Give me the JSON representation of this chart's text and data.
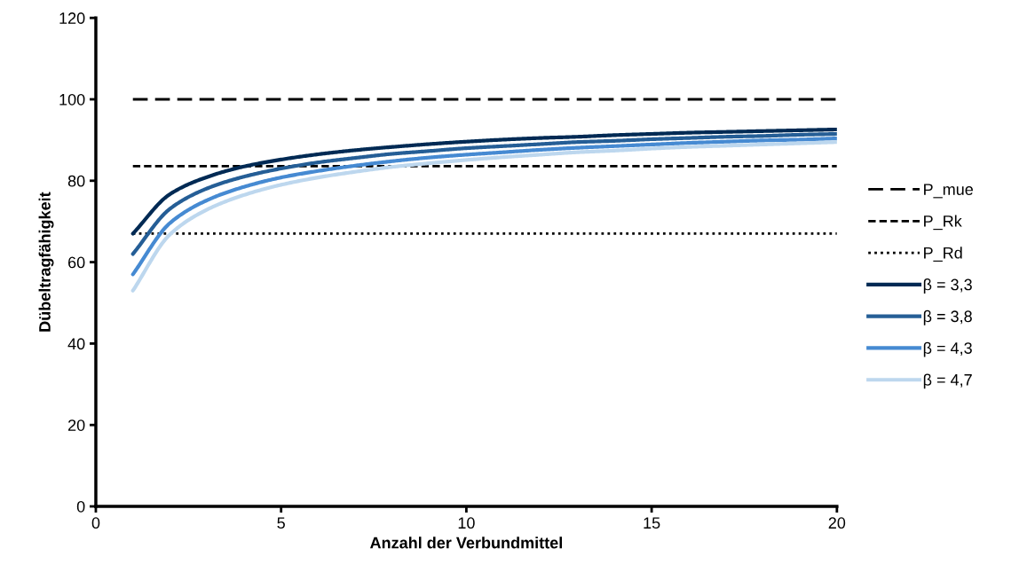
{
  "chart_data": {
    "type": "line",
    "xlabel": "Anzahl der Verbundmittel",
    "ylabel": "Dübeltragfähigkeit",
    "x": [
      1,
      2,
      3,
      4,
      5,
      6,
      7,
      8,
      9,
      10,
      11,
      12,
      13,
      14,
      15,
      16,
      17,
      18,
      19,
      20
    ],
    "xlim": [
      0,
      20
    ],
    "xticks": [
      0,
      5,
      10,
      15,
      20
    ],
    "ylim": [
      0,
      120
    ],
    "yticks": [
      0,
      20,
      40,
      60,
      80,
      100,
      120
    ],
    "grid": false,
    "legend": "right",
    "marker": "none",
    "series": [
      {
        "name": "P_mue",
        "color": "#000000",
        "line_style": "longdash",
        "values": [
          100,
          100,
          100,
          100,
          100,
          100,
          100,
          100,
          100,
          100,
          100,
          100,
          100,
          100,
          100,
          100,
          100,
          100,
          100,
          100
        ]
      },
      {
        "name": "P_Rk",
        "color": "#000000",
        "line_style": "dashed",
        "values": [
          83.6,
          83.6,
          83.6,
          83.6,
          83.6,
          83.6,
          83.6,
          83.6,
          83.6,
          83.6,
          83.6,
          83.6,
          83.6,
          83.6,
          83.6,
          83.6,
          83.6,
          83.6,
          83.6,
          83.6
        ]
      },
      {
        "name": "P_Rd",
        "color": "#000000",
        "line_style": "dotted",
        "values": [
          67,
          67,
          67,
          67,
          67,
          67,
          67,
          67,
          67,
          67,
          67,
          67,
          67,
          67,
          67,
          67,
          67,
          67,
          67,
          67
        ]
      },
      {
        "name": "β = 3,3",
        "color": "#002a54",
        "line_style": "solid",
        "values": [
          67,
          76.7,
          80.9,
          83.5,
          85.2,
          86.5,
          87.5,
          88.3,
          89,
          89.6,
          90.1,
          90.5,
          90.8,
          91.2,
          91.5,
          91.8,
          92,
          92.2,
          92.4,
          92.6
        ]
      },
      {
        "name": "β = 3,8",
        "color": "#255e96",
        "line_style": "solid",
        "values": [
          62,
          73.1,
          78.1,
          81,
          83,
          84.5,
          85.6,
          86.6,
          87.3,
          88,
          88.5,
          89,
          89.5,
          89.8,
          90.2,
          90.5,
          90.8,
          91,
          91.3,
          91.5
        ]
      },
      {
        "name": "β = 4,3",
        "color": "#468ad2",
        "line_style": "solid",
        "values": [
          57,
          69.6,
          75.2,
          78.5,
          80.8,
          82.4,
          83.7,
          84.8,
          85.7,
          86.4,
          87,
          87.6,
          88.1,
          88.5,
          88.9,
          89.3,
          89.6,
          89.9,
          90.1,
          90.4
        ]
      },
      {
        "name": "β = 4,7",
        "color": "#bdd7ee",
        "line_style": "solid",
        "values": [
          53,
          66.8,
          72.9,
          76.5,
          79,
          80.8,
          82.2,
          83.4,
          84.3,
          85.1,
          85.8,
          86.4,
          87,
          87.4,
          87.9,
          88.3,
          88.6,
          88.9,
          89.2,
          89.5
        ]
      }
    ]
  }
}
